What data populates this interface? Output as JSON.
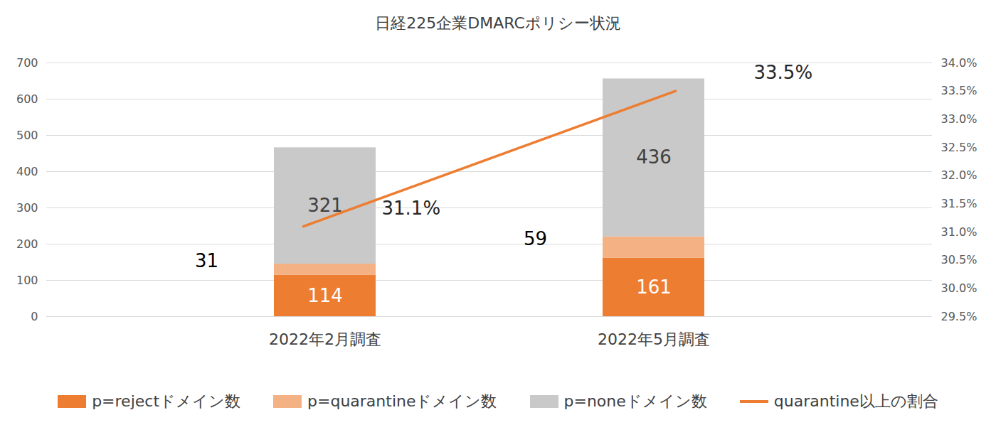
{
  "chart_data": {
    "type": "bar",
    "title": "日経225企業DMARCポリシー状況",
    "categories": [
      "2022年2月調査",
      "2022年5月調査"
    ],
    "stacked": true,
    "data_labels": true,
    "grid": true,
    "legend": "bottom",
    "ylim": [
      0,
      700
    ],
    "yticks": [
      0,
      100,
      200,
      300,
      400,
      500,
      600,
      700
    ],
    "y2lim": [
      29.5,
      34.0
    ],
    "y2ticks": [
      {
        "value": 29.5,
        "label": "29.5%"
      },
      {
        "value": 30.0,
        "label": "30.0%"
      },
      {
        "value": 30.5,
        "label": "30.5%"
      },
      {
        "value": 31.0,
        "label": "31.0%"
      },
      {
        "value": 31.5,
        "label": "31.5%"
      },
      {
        "value": 32.0,
        "label": "32.0%"
      },
      {
        "value": 32.5,
        "label": "32.5%"
      },
      {
        "value": 33.0,
        "label": "33.0%"
      },
      {
        "value": 33.5,
        "label": "33.5%"
      },
      {
        "value": 34.0,
        "label": "34.0%"
      }
    ],
    "series": [
      {
        "name": "p=rejectドメイン数",
        "type": "bar",
        "color": "#ed7d31",
        "values": [
          114,
          161
        ]
      },
      {
        "name": "p=quarantineドメイン数",
        "type": "bar",
        "color": "#f4b183",
        "values": [
          31,
          59
        ]
      },
      {
        "name": "p=noneドメイン数",
        "type": "bar",
        "color": "#c9c9c9",
        "values": [
          321,
          436
        ]
      },
      {
        "name": "quarantine以上の割合",
        "type": "line",
        "axis": "y2",
        "color": "#ed7d31",
        "values": [
          31.1,
          33.5
        ],
        "value_labels": [
          "31.1%",
          "33.5%"
        ]
      }
    ]
  }
}
